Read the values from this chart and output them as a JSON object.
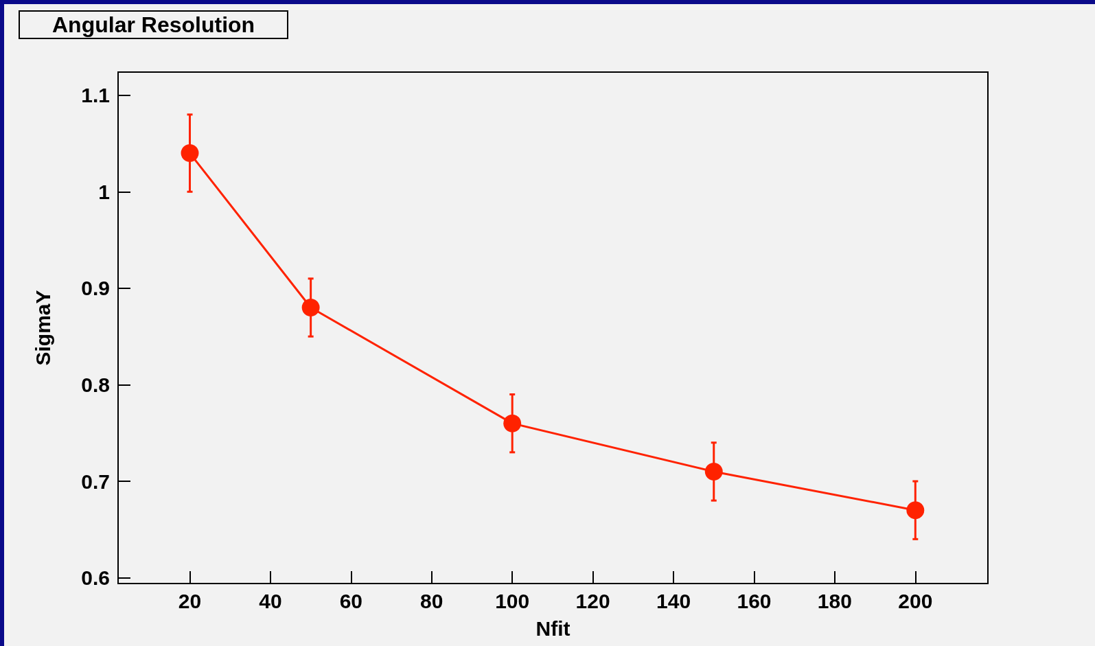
{
  "chart_data": {
    "type": "line",
    "title": "Angular Resolution",
    "xlabel": "Nfit",
    "ylabel": "SigmaY",
    "x": [
      20,
      50,
      100,
      150,
      200
    ],
    "series": [
      {
        "color": "#ff2200",
        "values": [
          1.04,
          0.88,
          0.76,
          0.71,
          0.67
        ],
        "errors": [
          0.04,
          0.03,
          0.03,
          0.03,
          0.03
        ]
      }
    ],
    "xlim": [
      2.2,
      218
    ],
    "ylim": [
      0.594,
      1.124
    ],
    "xticks": [
      20,
      40,
      60,
      80,
      100,
      120,
      140,
      160,
      180,
      200
    ],
    "yticks": [
      0.6,
      0.7,
      0.8,
      0.9,
      1,
      1.1
    ],
    "marker": "circle",
    "line_style": "solid",
    "grid": false
  }
}
